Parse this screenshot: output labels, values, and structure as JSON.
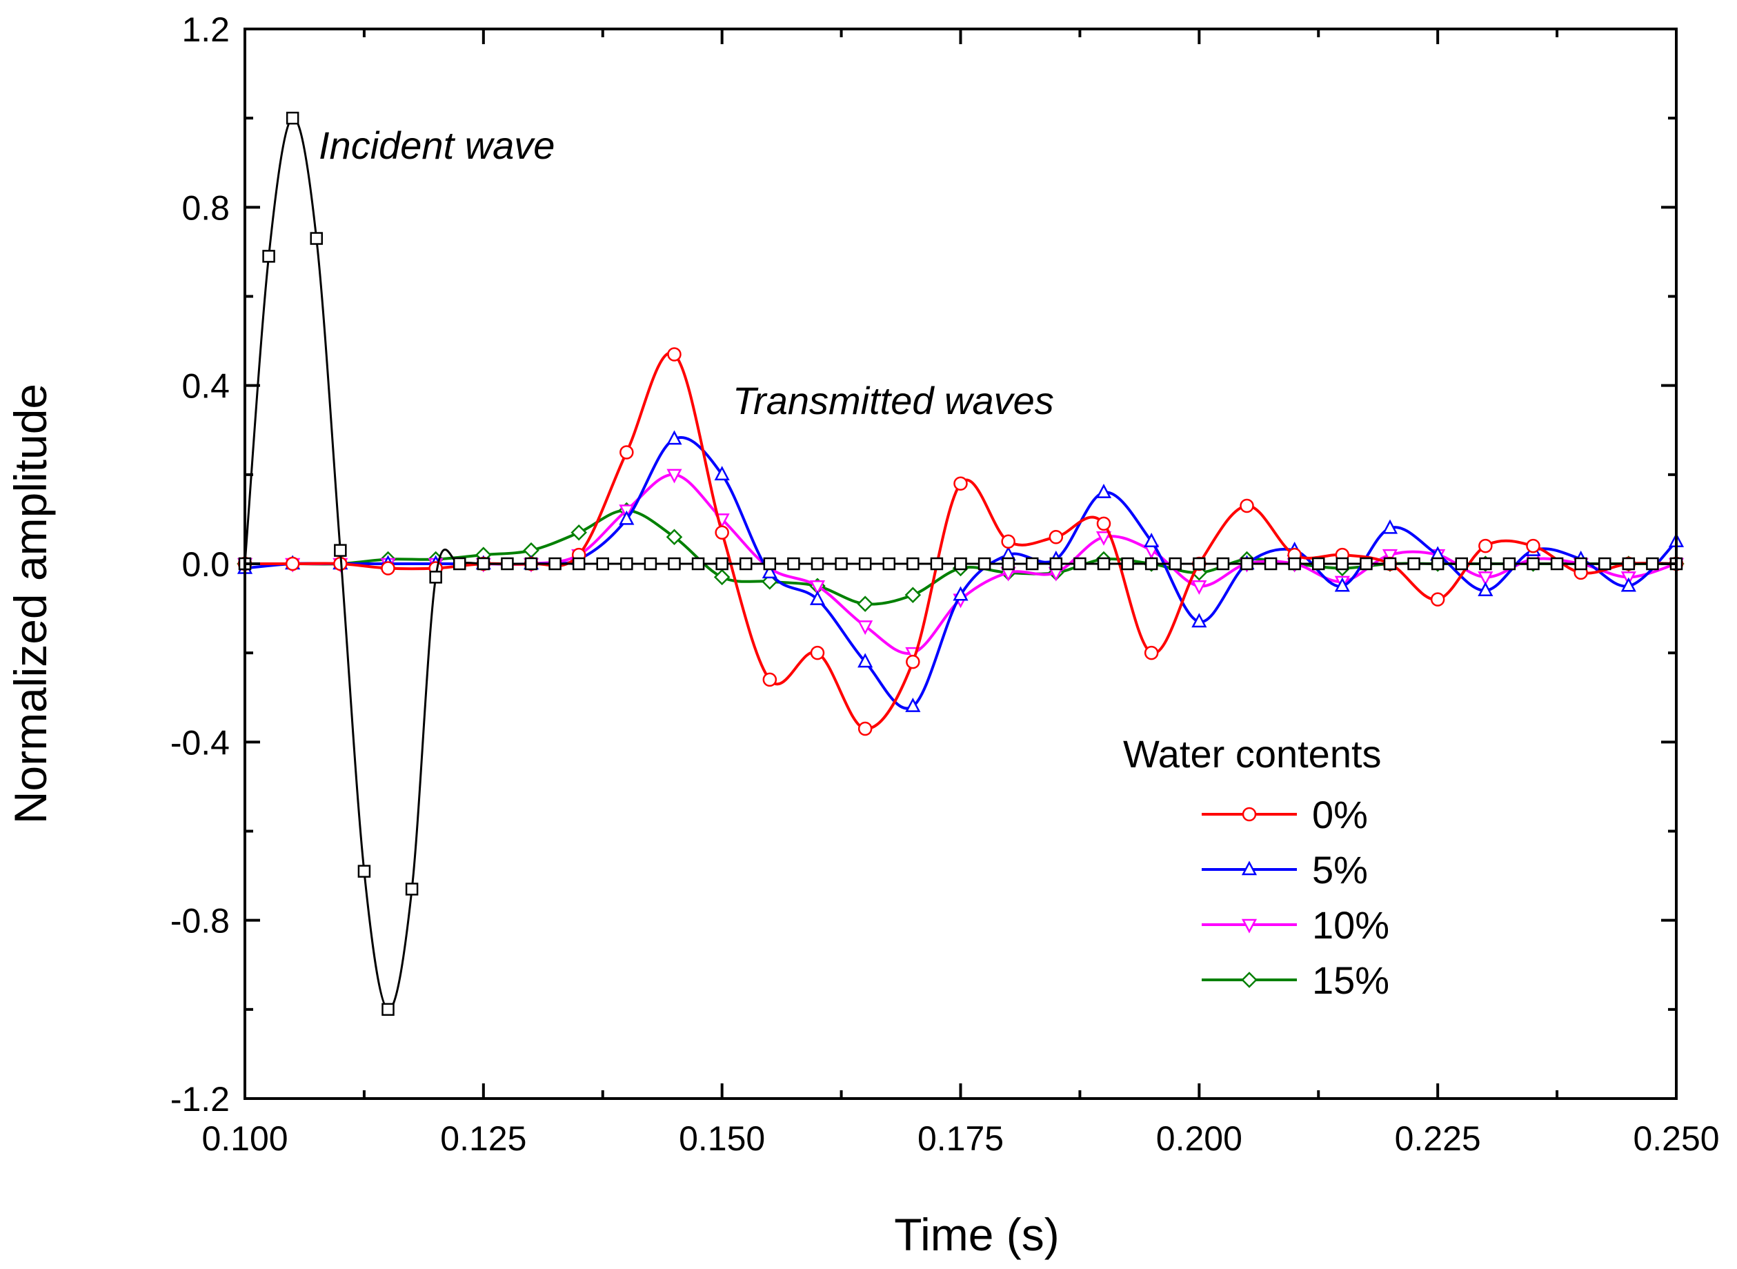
{
  "chart_data": {
    "type": "line",
    "xlabel": "Time (s)",
    "ylabel": "Normalized amplitude",
    "xlim": [
      0.1,
      0.25
    ],
    "ylim": [
      -1.2,
      1.2
    ],
    "x_ticks": [
      "0.100",
      "0.125",
      "0.150",
      "0.175",
      "0.200",
      "0.225",
      "0.250"
    ],
    "y_ticks": [
      "1.2",
      "0.8",
      "0.4",
      "0.0",
      "-0.4",
      "-0.8",
      "-1.2"
    ],
    "grid": false,
    "annotations": [
      "Incident wave",
      "Transmitted waves"
    ],
    "legend": {
      "title": "Water contents",
      "position": "lower-right",
      "entries": [
        "0%",
        "5%",
        "10%",
        "15%"
      ]
    },
    "series": [
      {
        "name": "Incident wave",
        "color": "#000000",
        "marker": "square",
        "x": [
          0.1,
          0.1025,
          0.105,
          0.1075,
          0.11,
          0.1125,
          0.115,
          0.1175,
          0.12,
          0.1225,
          0.125,
          0.1275,
          0.13,
          0.1325,
          0.135,
          0.1375,
          0.14,
          0.1425,
          0.145,
          0.1475,
          0.15,
          0.1525,
          0.155,
          0.1575,
          0.16,
          0.1625,
          0.165,
          0.1675,
          0.17,
          0.1725,
          0.175,
          0.1775,
          0.18,
          0.1825,
          0.185,
          0.1875,
          0.19,
          0.1925,
          0.195,
          0.1975,
          0.2,
          0.2025,
          0.205,
          0.2075,
          0.21,
          0.2125,
          0.215,
          0.2175,
          0.22,
          0.2225,
          0.225,
          0.2275,
          0.23,
          0.2325,
          0.235,
          0.2375,
          0.24,
          0.2425,
          0.245,
          0.2475,
          0.25
        ],
        "y": [
          0.0,
          0.69,
          1.0,
          0.73,
          0.03,
          -0.69,
          -1.0,
          -0.73,
          -0.03,
          0,
          0,
          0,
          0,
          0,
          0,
          0,
          0,
          0,
          0,
          0,
          0,
          0,
          0,
          0,
          0,
          0,
          0,
          0,
          0,
          0,
          0,
          0,
          0,
          0,
          0,
          0,
          0,
          0,
          0,
          0,
          0,
          0,
          0,
          0,
          0,
          0,
          0,
          0,
          0,
          0,
          0,
          0,
          0,
          0,
          0,
          0,
          0,
          0,
          0,
          0,
          0
        ]
      },
      {
        "name": "0%",
        "color": "#ff0000",
        "marker": "circle",
        "x": [
          0.1,
          0.105,
          0.11,
          0.115,
          0.12,
          0.125,
          0.13,
          0.135,
          0.14,
          0.145,
          0.15,
          0.155,
          0.16,
          0.165,
          0.17,
          0.175,
          0.18,
          0.185,
          0.19,
          0.195,
          0.2,
          0.205,
          0.21,
          0.215,
          0.22,
          0.225,
          0.23,
          0.235,
          0.24,
          0.245,
          0.25
        ],
        "y": [
          0.0,
          0.0,
          0.0,
          -0.01,
          -0.01,
          0.0,
          0.0,
          0.02,
          0.25,
          0.47,
          0.07,
          -0.26,
          -0.2,
          -0.37,
          -0.22,
          0.18,
          0.05,
          0.06,
          0.09,
          -0.2,
          0.0,
          0.13,
          0.02,
          0.02,
          0.0,
          -0.08,
          0.04,
          0.04,
          -0.02,
          0.0,
          0.0
        ]
      },
      {
        "name": "5%",
        "color": "#0000ff",
        "marker": "triangle-up",
        "x": [
          0.1,
          0.105,
          0.11,
          0.115,
          0.12,
          0.125,
          0.13,
          0.135,
          0.14,
          0.145,
          0.15,
          0.155,
          0.16,
          0.165,
          0.17,
          0.175,
          0.18,
          0.185,
          0.19,
          0.195,
          0.2,
          0.205,
          0.21,
          0.215,
          0.22,
          0.225,
          0.23,
          0.235,
          0.24,
          0.245,
          0.25
        ],
        "y": [
          -0.01,
          0.0,
          0.0,
          0.0,
          0.0,
          0.0,
          0.0,
          0.01,
          0.1,
          0.28,
          0.2,
          -0.02,
          -0.08,
          -0.22,
          -0.32,
          -0.07,
          0.02,
          0.01,
          0.16,
          0.05,
          -0.13,
          0.0,
          0.03,
          -0.05,
          0.08,
          0.02,
          -0.06,
          0.03,
          0.01,
          -0.05,
          0.05
        ]
      },
      {
        "name": "10%",
        "color": "#ff00ff",
        "marker": "triangle-down",
        "x": [
          0.1,
          0.105,
          0.11,
          0.115,
          0.12,
          0.125,
          0.13,
          0.135,
          0.14,
          0.145,
          0.15,
          0.155,
          0.16,
          0.165,
          0.17,
          0.175,
          0.18,
          0.185,
          0.19,
          0.195,
          0.2,
          0.205,
          0.21,
          0.215,
          0.22,
          0.225,
          0.23,
          0.235,
          0.24,
          0.245,
          0.25
        ],
        "y": [
          0.0,
          0.0,
          0.0,
          0.0,
          0.0,
          0.0,
          0.0,
          0.02,
          0.12,
          0.2,
          0.1,
          -0.01,
          -0.05,
          -0.14,
          -0.2,
          -0.08,
          -0.02,
          -0.02,
          0.06,
          0.03,
          -0.05,
          0.0,
          0.0,
          -0.04,
          0.02,
          0.02,
          -0.03,
          0.01,
          0.0,
          -0.03,
          0.0
        ]
      },
      {
        "name": "15%",
        "color": "#008000",
        "marker": "diamond",
        "x": [
          0.1,
          0.105,
          0.11,
          0.115,
          0.12,
          0.125,
          0.13,
          0.135,
          0.14,
          0.145,
          0.15,
          0.155,
          0.16,
          0.165,
          0.17,
          0.175,
          0.18,
          0.185,
          0.19,
          0.195,
          0.2,
          0.205,
          0.21,
          0.215,
          0.22,
          0.225,
          0.23,
          0.235,
          0.24,
          0.245,
          0.25
        ],
        "y": [
          0.0,
          0.0,
          0.0,
          0.01,
          0.01,
          0.02,
          0.03,
          0.07,
          0.12,
          0.06,
          -0.03,
          -0.04,
          -0.05,
          -0.09,
          -0.07,
          -0.01,
          -0.02,
          -0.02,
          0.01,
          0.0,
          -0.02,
          0.01,
          0.0,
          -0.01,
          0.0,
          0.0,
          0.0,
          0.0,
          0.0,
          0.0,
          0.0
        ]
      }
    ]
  }
}
